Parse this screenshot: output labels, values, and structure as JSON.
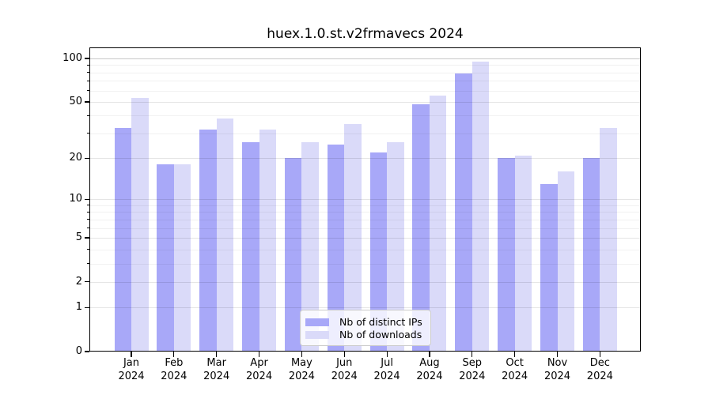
{
  "chart_data": {
    "type": "bar",
    "title": "huex.1.0.st.v2frmavecs 2024",
    "categories": [
      "Jan",
      "Feb",
      "Mar",
      "Apr",
      "May",
      "Jun",
      "Jul",
      "Aug",
      "Sep",
      "Oct",
      "Nov",
      "Dec"
    ],
    "year_label": "2024",
    "series": [
      {
        "name": "Nb of distinct IPs",
        "color": "#a8a8f8",
        "values": [
          33,
          18,
          32,
          26,
          20,
          25,
          22,
          48,
          79,
          20,
          13,
          20
        ]
      },
      {
        "name": "Nb of downloads",
        "color": "#dadaf9",
        "values": [
          53,
          18,
          38,
          32,
          26,
          35,
          26,
          55,
          95,
          21,
          16,
          33
        ]
      }
    ],
    "xlabel": "",
    "ylabel": "",
    "yscale": "log1p",
    "y_ticks": [
      0,
      1,
      2,
      5,
      10,
      20,
      50,
      100
    ],
    "ylim": [
      0,
      120
    ],
    "grid": true,
    "legend_position": "bottom-center"
  }
}
